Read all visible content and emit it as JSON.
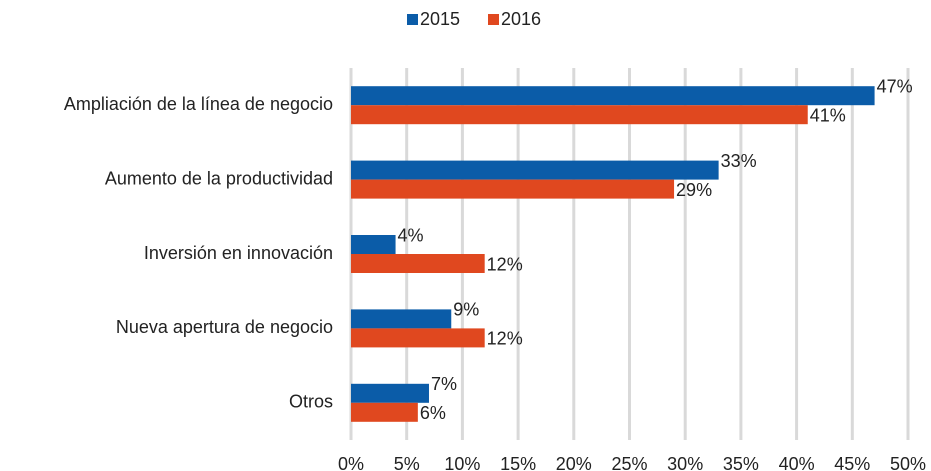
{
  "chart_data": {
    "type": "hbar",
    "categories": [
      "Ampliación de la línea de negocio",
      "Aumento de la productividad",
      "Inversión en innovación",
      "Nueva apertura de negocio",
      "Otros"
    ],
    "series": [
      {
        "name": "2015",
        "color": "#0b5ca8",
        "values": [
          47,
          33,
          4,
          9,
          7
        ],
        "value_labels": [
          "47%",
          "33%",
          "4%",
          "9%",
          "7%"
        ]
      },
      {
        "name": "2016",
        "color": "#e0481f",
        "values": [
          41,
          29,
          12,
          12,
          6
        ],
        "value_labels": [
          "41%",
          "29%",
          "12%",
          "12%",
          "6%"
        ]
      }
    ],
    "xlim": [
      0,
      50
    ],
    "xticks": [
      {
        "value": 0,
        "label": "0%"
      },
      {
        "value": 5,
        "label": "5%"
      },
      {
        "value": 10,
        "label": "10%"
      },
      {
        "value": 15,
        "label": "15%"
      },
      {
        "value": 20,
        "label": "20%"
      },
      {
        "value": 25,
        "label": "25%"
      },
      {
        "value": 30,
        "label": "30%"
      },
      {
        "value": 35,
        "label": "35%"
      },
      {
        "value": 40,
        "label": "40%"
      },
      {
        "value": 45,
        "label": "45%"
      },
      {
        "value": 50,
        "label": "50%"
      }
    ],
    "grid": true,
    "legend": "top"
  }
}
